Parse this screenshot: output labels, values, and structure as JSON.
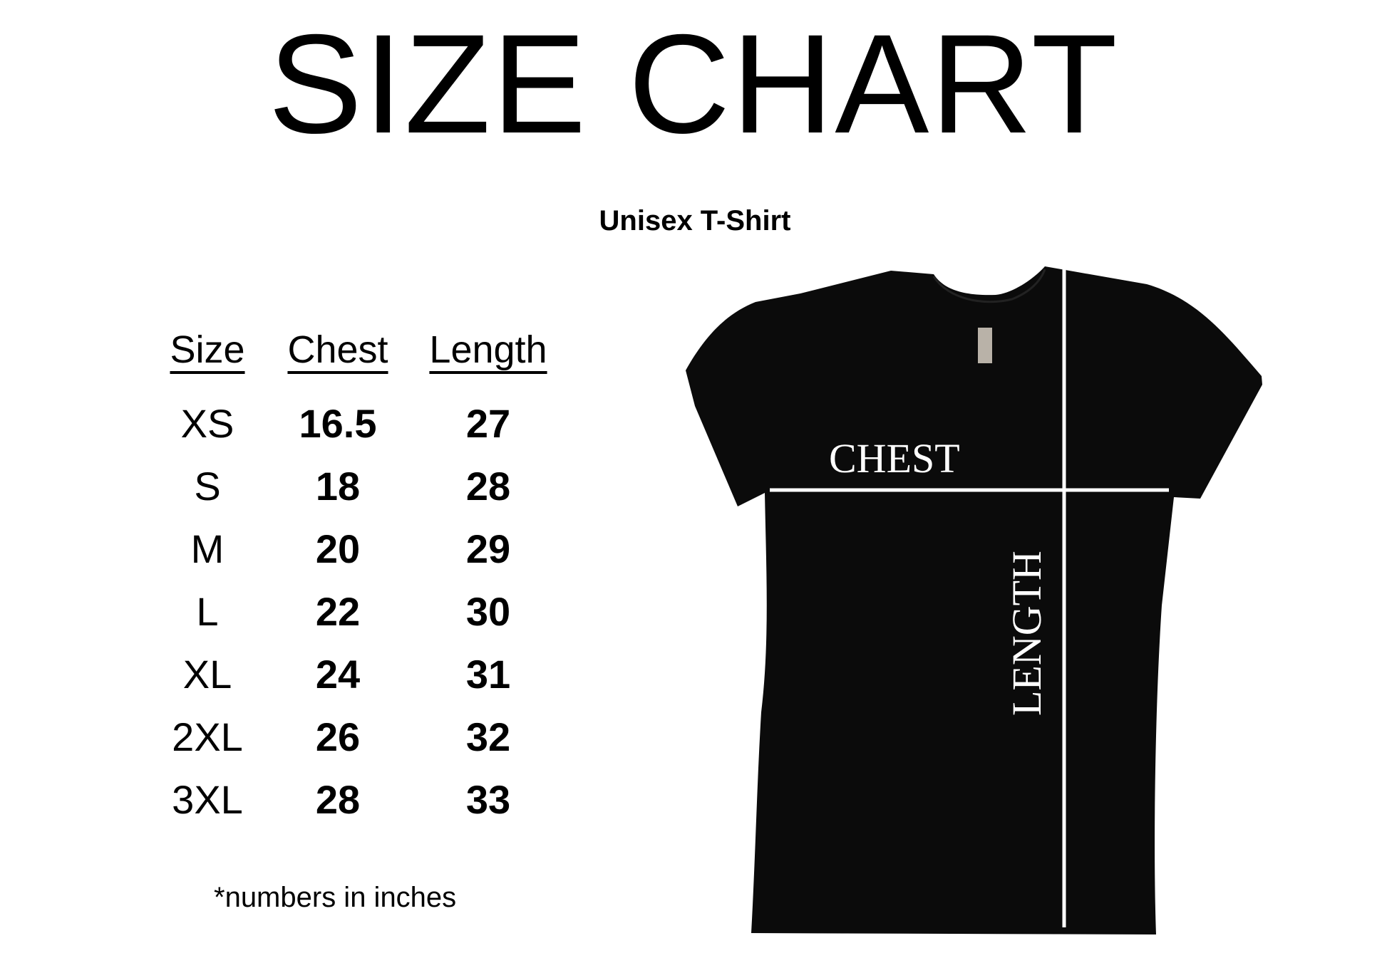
{
  "title": "SIZE CHART",
  "subtitle": "Unisex T-Shirt",
  "table": {
    "headers": [
      "Size",
      "Chest",
      "Length"
    ],
    "rows": [
      [
        "XS",
        "16.5",
        "27"
      ],
      [
        "S",
        "18",
        "28"
      ],
      [
        "M",
        "20",
        "29"
      ],
      [
        "L",
        "22",
        "30"
      ],
      [
        "XL",
        "24",
        "31"
      ],
      [
        "2XL",
        "26",
        "32"
      ],
      [
        "3XL",
        "28",
        "33"
      ]
    ]
  },
  "footnote": "*numbers in inches",
  "shirt": {
    "chest_label": "CHEST",
    "length_label": "LENGTH",
    "shirt_color": "#0b0b0b",
    "line_color": "#ffffff"
  }
}
